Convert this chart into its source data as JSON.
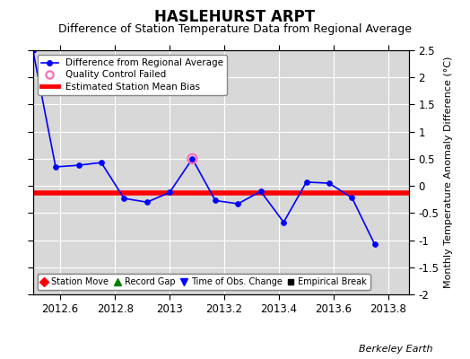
{
  "title": "HASLEHURST ARPT",
  "subtitle": "Difference of Station Temperature Data from Regional Average",
  "ylabel": "Monthly Temperature Anomaly Difference (°C)",
  "credit": "Berkeley Earth",
  "xlim": [
    2012.5,
    2013.875
  ],
  "ylim": [
    -2.0,
    2.5
  ],
  "yticks": [
    -2.0,
    -1.5,
    -1.0,
    -0.5,
    0.0,
    0.5,
    1.0,
    1.5,
    2.0,
    2.5
  ],
  "ytick_labels": [
    "-2",
    "-1.5",
    "-1",
    "-0.5",
    "0",
    "0.5",
    "1",
    "1.5",
    "2",
    "2.5"
  ],
  "xticks": [
    2012.6,
    2012.8,
    2013.0,
    2013.2,
    2013.4,
    2013.6,
    2013.8
  ],
  "xtick_labels": [
    "2012.6",
    "2012.8",
    "2013",
    "2013.2",
    "2013.4",
    "2013.6",
    "2013.8"
  ],
  "line_x": [
    2012.5,
    2012.583,
    2012.667,
    2012.75,
    2012.833,
    2012.917,
    2013.0,
    2013.083,
    2013.167,
    2013.25,
    2013.333,
    2013.417,
    2013.5,
    2013.583,
    2013.667,
    2013.75
  ],
  "line_y": [
    2.5,
    0.35,
    0.38,
    0.43,
    -0.23,
    -0.3,
    -0.12,
    0.5,
    -0.27,
    -0.33,
    -0.1,
    -0.67,
    0.07,
    0.05,
    -0.22,
    -1.08
  ],
  "qc_x": [
    2013.083
  ],
  "qc_y": [
    0.5
  ],
  "bias_y": -0.13,
  "bias_color": "red",
  "line_color": "blue",
  "marker_color": "blue",
  "marker_size": 4,
  "line_width": 1.2,
  "bias_linewidth": 4,
  "bg_color": "#d8d8d8",
  "grid_color": "white",
  "title_fontsize": 12,
  "subtitle_fontsize": 9,
  "ylabel_fontsize": 8,
  "tick_fontsize": 8.5,
  "credit_fontsize": 8
}
